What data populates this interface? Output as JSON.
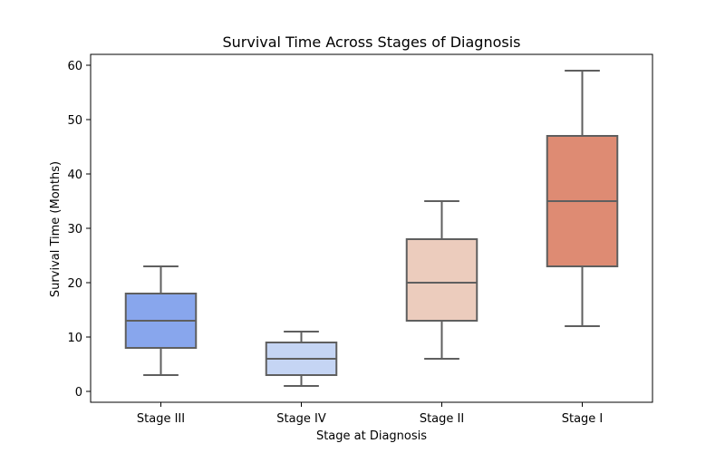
{
  "chart_data": {
    "type": "box",
    "title": "Survival Time Across Stages of Diagnosis",
    "xlabel": "Stage at Diagnosis",
    "ylabel": "Survival Time (Months)",
    "ylim": [
      -2,
      62
    ],
    "yticks": [
      0,
      10,
      20,
      30,
      40,
      50,
      60
    ],
    "grid": false,
    "legend": "none",
    "categories": [
      "Stage III",
      "Stage IV",
      "Stage II",
      "Stage I"
    ],
    "boxes": [
      {
        "category": "Stage III",
        "whisker_low": 3,
        "q1": 8,
        "median": 13,
        "q3": 18,
        "whisker_high": 23,
        "color": "#88a6ed"
      },
      {
        "category": "Stage IV",
        "whisker_low": 1,
        "q1": 3,
        "median": 6,
        "q3": 9,
        "whisker_high": 11,
        "color": "#c5d5f4"
      },
      {
        "category": "Stage II",
        "whisker_low": 6,
        "q1": 13,
        "median": 20,
        "q3": 28,
        "whisker_high": 35,
        "color": "#ecccbd"
      },
      {
        "category": "Stage I",
        "whisker_low": 12,
        "q1": 23,
        "median": 35,
        "q3": 47,
        "whisker_high": 59,
        "color": "#de8b73"
      }
    ],
    "line_color": "#5f5f5f"
  }
}
